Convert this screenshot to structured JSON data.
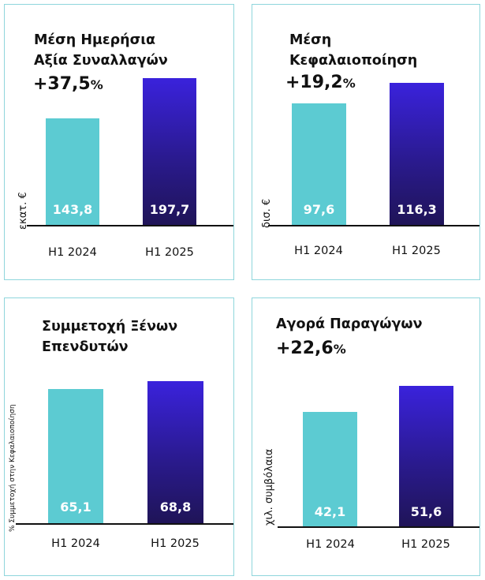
{
  "colors": {
    "border": "#8fd6dc",
    "bar_2024": "#5ccbd2",
    "bar_2025_top": "#3a22dc",
    "bar_2025_bottom": "#1f1457"
  },
  "chart_data": [
    {
      "type": "bar",
      "title": "Μέση Ημερήσια Αξία Συναλλαγών",
      "title_lines": [
        "Μέση Ημερήσια",
        "Αξία Συναλλαγών"
      ],
      "change": "+37,5",
      "change_unit": "%",
      "ylabel": "εκατ. €",
      "categories": [
        "H1 2024",
        "H1 2025"
      ],
      "values": [
        143.8,
        197.7
      ],
      "value_labels": [
        "143,8",
        "197,7"
      ]
    },
    {
      "type": "bar",
      "title": "Μέση Κεφαλαιοποίηση",
      "title_lines": [
        "Μέση",
        "Κεφαλαιοποίηση"
      ],
      "change": "+19,2",
      "change_unit": "%",
      "ylabel": "δισ. €",
      "categories": [
        "H1 2024",
        "H1 2025"
      ],
      "values": [
        97.6,
        116.3
      ],
      "value_labels": [
        "97,6",
        "116,3"
      ]
    },
    {
      "type": "bar",
      "title": "Συμμετοχή Ξένων Επενδυτών",
      "title_lines": [
        "Συμμετοχή Ξένων",
        "Επενδυτών"
      ],
      "change": "",
      "change_unit": "",
      "ylabel": "% Συμμετοχή στην Κεφαλαιοποίηση",
      "categories": [
        "H1 2024",
        "H1 2025"
      ],
      "values": [
        65.1,
        68.8
      ],
      "value_labels": [
        "65,1",
        "68,8"
      ]
    },
    {
      "type": "bar",
      "title": "Αγορά Παραγώγων",
      "title_lines": [
        "Αγορά Παραγώγων"
      ],
      "change": "+22,6",
      "change_unit": "%",
      "ylabel": "χιλ. συμβόλαια",
      "categories": [
        "H1 2024",
        "H1 2025"
      ],
      "values": [
        42.1,
        51.6
      ],
      "value_labels": [
        "42,1",
        "51,6"
      ]
    }
  ]
}
